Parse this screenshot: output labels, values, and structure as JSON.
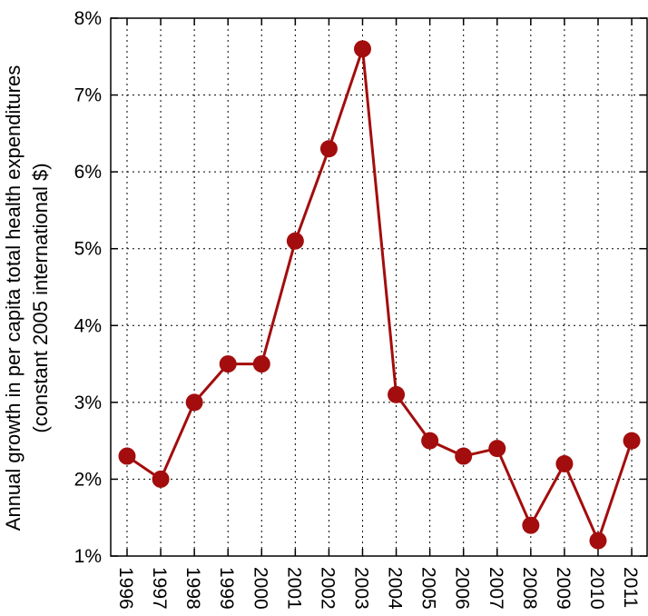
{
  "chart_data": {
    "type": "line",
    "title": "",
    "xlabel": "",
    "ylabel": "Annual growth in per capita total health expenditures",
    "ylabel_line2": "(constant 2005 international $)",
    "categories": [
      "1996",
      "1997",
      "1998",
      "1999",
      "2000",
      "2001",
      "2002",
      "2003",
      "2004",
      "2005",
      "2006",
      "2007",
      "2008",
      "2009",
      "2010",
      "2011"
    ],
    "series": [
      {
        "values": [
          2.3,
          2.0,
          3.0,
          3.5,
          3.5,
          5.1,
          6.3,
          7.6,
          3.1,
          2.5,
          2.3,
          2.4,
          1.4,
          2.2,
          1.2,
          2.5
        ],
        "color": "#a30d0d"
      }
    ],
    "ylim": [
      1,
      8
    ],
    "yticks": [
      "1%",
      "2%",
      "3%",
      "4%",
      "5%",
      "6%",
      "7%",
      "8%"
    ],
    "grid": true,
    "grid_style": "dotted",
    "x_tick_rotation": "vertical"
  }
}
